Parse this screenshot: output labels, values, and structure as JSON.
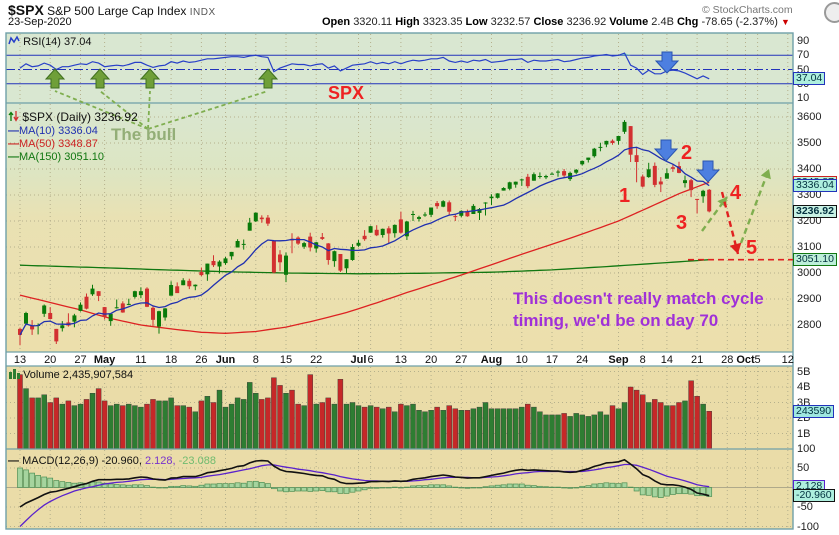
{
  "header": {
    "symbol": "$SPX",
    "name": "S&P 500 Large Cap Index",
    "exchange": "INDX",
    "date": "23-Sep-2020",
    "copyright": "© StockCharts.com",
    "quote": {
      "open_label": "Open",
      "open": "3320.11",
      "high_label": "High",
      "high": "3323.35",
      "low_label": "Low",
      "low": "3232.57",
      "close_label": "Close",
      "close": "3236.92",
      "volume_label": "Volume",
      "volume": "2.4B",
      "chg_label": "Chg",
      "chg": "-78.65 (-2.37%)",
      "chg_arrow": "▼"
    }
  },
  "panels": {
    "rsi": {
      "label": "RSI(14) 37.04",
      "value_box": "37.04",
      "scale": [
        90,
        70,
        50,
        30,
        10
      ]
    },
    "price": {
      "label": "$SPX (Daily) 3236.92",
      "ma10_label": "MA(10) 3336.04",
      "ma50_label": "MA(50) 3348.87",
      "ma150_label": "MA(150) 3051.10",
      "scale": [
        3600,
        3500,
        3400,
        3300,
        3200,
        3100,
        3000,
        2900,
        2800
      ],
      "boxes": {
        "ma10": "3336.04",
        "ma50": "3348.87",
        "close": "3236.92",
        "ma150": "3051.10"
      }
    },
    "volume": {
      "label": "Volume 2,435,907,584",
      "value_box": "243590",
      "scale": [
        [
          5000,
          "5B"
        ],
        [
          4000,
          "4B"
        ],
        [
          3000,
          "3B"
        ],
        [
          2000,
          "2B"
        ],
        [
          1000,
          "1B"
        ]
      ]
    },
    "macd": {
      "label_main": "MACD(12,26,9) -20.960,",
      "label_signal": "2.128,",
      "label_hist": "-23.088",
      "scale": [
        100,
        50,
        -50,
        -100
      ],
      "boxes": {
        "signal": "2.128",
        "macd": "-20.960"
      }
    }
  },
  "annotations": {
    "spx_label": "SPX",
    "the_bull": "The bull",
    "cycle_note_line1": "This doesn't really match cycle",
    "cycle_note_line2": "timing, we'd be on day 70",
    "numbers": [
      {
        "n": "1"
      },
      {
        "n": "2"
      },
      {
        "n": "3"
      },
      {
        "n": "4"
      },
      {
        "n": "5"
      }
    ]
  },
  "x_axis": {
    "ticks": [
      [
        0,
        "13"
      ],
      [
        5,
        "20"
      ],
      [
        10,
        "27"
      ],
      [
        14,
        "May"
      ],
      [
        20,
        "11"
      ],
      [
        25,
        "18"
      ],
      [
        30,
        "26"
      ],
      [
        34,
        "Jun"
      ],
      [
        39,
        "8"
      ],
      [
        44,
        "15"
      ],
      [
        49,
        "22"
      ],
      [
        56,
        "Jul"
      ],
      [
        58,
        "6"
      ],
      [
        63,
        "13"
      ],
      [
        68,
        "20"
      ],
      [
        73,
        "27"
      ],
      [
        78,
        "Aug"
      ],
      [
        83,
        "10"
      ],
      [
        88,
        "17"
      ],
      [
        93,
        "24"
      ],
      [
        99,
        "Sep"
      ],
      [
        103,
        "8"
      ],
      [
        107,
        "14"
      ],
      [
        112,
        "21"
      ],
      [
        117,
        "28"
      ],
      [
        120,
        "Oct"
      ],
      [
        122,
        "5"
      ],
      [
        127,
        "12"
      ]
    ]
  },
  "colors": {
    "candle_up": "#0A7A0A",
    "candle_down": "#D23030",
    "ma10": "#2030B0",
    "ma50": "#DD2222",
    "ma150": "#117711",
    "rsi_line": "#2840C8",
    "rsi_level": "#2233BB",
    "macd_line": "#111111",
    "macd_signal": "#5A22CC",
    "hist_fill": "#A5D49E",
    "hist_stroke": "#4E8F55",
    "vol_up": "#2E7D32",
    "vol_down": "#C62828",
    "blue_arrow": "#4D7FE0",
    "green_arrow": "#6F9F38",
    "annot_red": "#EE2222",
    "annot_purple": "#A030D8"
  },
  "chart_data": {
    "type": "candlestick",
    "title": "$SPX (Daily) 3236.92",
    "date_range": "13-Apr-2020 to 23-Sep-2020",
    "candles": [
      [
        2785,
        2790,
        2722,
        2762
      ],
      [
        2805,
        2851,
        2805,
        2846
      ],
      [
        2796,
        2819,
        2762,
        2783
      ],
      [
        2799,
        2806,
        2764,
        2800
      ],
      [
        2843,
        2879,
        2831,
        2875
      ],
      [
        2846,
        2869,
        2821,
        2823
      ],
      [
        2785,
        2785,
        2727,
        2737
      ],
      [
        2788,
        2815,
        2775,
        2799
      ],
      [
        2810,
        2845,
        2794,
        2798
      ],
      [
        2813,
        2843,
        2791,
        2837
      ],
      [
        2854,
        2887,
        2852,
        2878
      ],
      [
        2909,
        2921,
        2860,
        2863
      ],
      [
        2918,
        2955,
        2912,
        2940
      ],
      [
        2930,
        2930,
        2892,
        2912
      ],
      [
        2869,
        2869,
        2821,
        2831
      ],
      [
        2815,
        2844,
        2797,
        2843
      ],
      [
        2868,
        2898,
        2863,
        2868
      ],
      [
        2883,
        2891,
        2847,
        2848
      ],
      [
        2878,
        2901,
        2876,
        2881
      ],
      [
        2908,
        2932,
        2902,
        2930
      ],
      [
        2915,
        2945,
        2903,
        2930
      ],
      [
        2940,
        2945,
        2869,
        2870
      ],
      [
        2866,
        2874,
        2794,
        2820
      ],
      [
        2794,
        2855,
        2767,
        2853
      ],
      [
        2829,
        2865,
        2817,
        2864
      ],
      [
        2913,
        2968,
        2913,
        2954
      ],
      [
        2949,
        2964,
        2923,
        2923
      ],
      [
        2953,
        2980,
        2953,
        2972
      ],
      [
        2970,
        2978,
        2938,
        2949
      ],
      [
        2949,
        2956,
        2934,
        2955
      ],
      [
        3004,
        3021,
        2988,
        2992
      ],
      [
        2995,
        3036,
        2970,
        3036
      ],
      [
        3046,
        3068,
        3023,
        3030
      ],
      [
        3025,
        3049,
        2998,
        3044
      ],
      [
        3038,
        3062,
        3031,
        3056
      ],
      [
        3064,
        3081,
        3051,
        3081
      ],
      [
        3098,
        3130,
        3098,
        3123
      ],
      [
        3111,
        3129,
        3090,
        3112
      ],
      [
        3163,
        3212,
        3163,
        3194
      ],
      [
        3199,
        3233,
        3196,
        3232
      ],
      [
        3213,
        3222,
        3193,
        3207
      ],
      [
        3213,
        3223,
        3181,
        3190
      ],
      [
        3123,
        3123,
        2999,
        3002
      ],
      [
        3071,
        3088,
        3008,
        3041
      ],
      [
        2993,
        3079,
        2965,
        3067
      ],
      [
        3131,
        3153,
        3076,
        3125
      ],
      [
        3136,
        3141,
        3108,
        3113
      ],
      [
        3101,
        3120,
        3093,
        3115
      ],
      [
        3140,
        3155,
        3083,
        3098
      ],
      [
        3094,
        3120,
        3079,
        3118
      ],
      [
        3138,
        3154,
        3127,
        3131
      ],
      [
        3114,
        3115,
        3032,
        3050
      ],
      [
        3046,
        3086,
        3024,
        3084
      ],
      [
        3073,
        3073,
        3004,
        3009
      ],
      [
        3018,
        3053,
        2999,
        3053
      ],
      [
        3050,
        3111,
        3047,
        3100
      ],
      [
        3105,
        3128,
        3101,
        3116
      ],
      [
        3143,
        3165,
        3124,
        3130
      ],
      [
        3155,
        3182,
        3155,
        3180
      ],
      [
        3166,
        3184,
        3142,
        3145
      ],
      [
        3146,
        3171,
        3136,
        3170
      ],
      [
        3172,
        3180,
        3115,
        3152
      ],
      [
        3153,
        3187,
        3136,
        3185
      ],
      [
        3206,
        3236,
        3151,
        3155
      ],
      [
        3141,
        3200,
        3127,
        3198
      ],
      [
        3226,
        3239,
        3200,
        3227
      ],
      [
        3208,
        3220,
        3198,
        3215
      ],
      [
        3224,
        3234,
        3216,
        3225
      ],
      [
        3224,
        3252,
        3215,
        3252
      ],
      [
        3269,
        3277,
        3247,
        3257
      ],
      [
        3255,
        3280,
        3253,
        3276
      ],
      [
        3272,
        3279,
        3222,
        3236
      ],
      [
        3219,
        3228,
        3200,
        3216
      ],
      [
        3220,
        3241,
        3214,
        3239
      ],
      [
        3235,
        3244,
        3216,
        3218
      ],
      [
        3227,
        3265,
        3227,
        3258
      ],
      [
        3231,
        3250,
        3204,
        3246
      ],
      [
        3271,
        3272,
        3221,
        3271
      ],
      [
        3288,
        3303,
        3261,
        3294
      ],
      [
        3289,
        3307,
        3286,
        3306
      ],
      [
        3317,
        3330,
        3317,
        3327
      ],
      [
        3324,
        3351,
        3318,
        3349
      ],
      [
        3340,
        3352,
        3328,
        3351
      ],
      [
        3356,
        3363,
        3335,
        3360
      ],
      [
        3370,
        3381,
        3326,
        3334
      ],
      [
        3355,
        3387,
        3355,
        3380
      ],
      [
        3372,
        3387,
        3363,
        3373
      ],
      [
        3368,
        3378,
        3361,
        3373
      ],
      [
        3380,
        3387,
        3379,
        3382
      ],
      [
        3387,
        3395,
        3370,
        3390
      ],
      [
        3392,
        3400,
        3369,
        3375
      ],
      [
        3361,
        3390,
        3354,
        3385
      ],
      [
        3386,
        3400,
        3380,
        3397
      ],
      [
        3418,
        3432,
        3413,
        3431
      ],
      [
        3435,
        3444,
        3425,
        3444
      ],
      [
        3449,
        3481,
        3444,
        3478
      ],
      [
        3485,
        3501,
        3468,
        3485
      ],
      [
        3494,
        3509,
        3484,
        3508
      ],
      [
        3509,
        3514,
        3493,
        3500
      ],
      [
        3508,
        3528,
        3494,
        3527
      ],
      [
        3543,
        3588,
        3535,
        3581
      ],
      [
        3565,
        3565,
        3427,
        3455
      ],
      [
        3453,
        3480,
        3349,
        3427
      ],
      [
        3371,
        3379,
        3329,
        3332
      ],
      [
        3369,
        3424,
        3366,
        3399
      ],
      [
        3412,
        3425,
        3330,
        3339
      ],
      [
        3352,
        3369,
        3311,
        3341
      ],
      [
        3363,
        3402,
        3363,
        3384
      ],
      [
        3407,
        3419,
        3389,
        3401
      ],
      [
        3411,
        3428,
        3384,
        3385
      ],
      [
        3346,
        3375,
        3329,
        3357
      ],
      [
        3357,
        3362,
        3292,
        3319
      ],
      [
        3285,
        3285,
        3229,
        3281
      ],
      [
        3295,
        3320,
        3270,
        3316
      ],
      [
        3320,
        3323,
        3233,
        3237
      ]
    ],
    "volume_m": [
      4800,
      3900,
      3300,
      3300,
      3500,
      3000,
      3300,
      2900,
      3100,
      2800,
      2900,
      3200,
      3600,
      3900,
      3100,
      2800,
      2900,
      2800,
      2900,
      2800,
      2700,
      2900,
      3200,
      3100,
      3100,
      3300,
      2800,
      2800,
      2700,
      2400,
      3100,
      3400,
      3000,
      3800,
      2700,
      2900,
      3300,
      3200,
      4300,
      3600,
      3200,
      3300,
      4600,
      4100,
      3600,
      3800,
      2900,
      2800,
      4800,
      2900,
      3000,
      3300,
      2900,
      4500,
      2900,
      3000,
      2800,
      2700,
      2800,
      2700,
      2600,
      2700,
      2400,
      2900,
      2800,
      2900,
      2500,
      2400,
      2500,
      2700,
      2500,
      2800,
      2600,
      2500,
      2500,
      2600,
      2700,
      3000,
      2600,
      2600,
      2600,
      2600,
      2600,
      2700,
      2900,
      2700,
      2400,
      2200,
      2200,
      2200,
      2300,
      2100,
      2300,
      2200,
      2100,
      2200,
      2400,
      2200,
      2800,
      2600,
      3000,
      4000,
      3800,
      3500,
      3000,
      3200,
      3000,
      2800,
      2800,
      3000,
      3100,
      4400,
      3400,
      2900,
      2436
    ],
    "rsi": [
      52,
      58,
      54,
      55,
      59,
      56,
      50,
      54,
      54,
      56,
      58,
      57,
      61,
      59,
      54,
      55,
      56,
      55,
      57,
      60,
      60,
      56,
      53,
      55,
      56,
      61,
      59,
      62,
      60,
      61,
      63,
      65,
      65,
      66,
      67,
      68,
      68,
      67,
      69,
      70,
      68,
      67,
      47,
      52,
      55,
      58,
      57,
      57,
      55,
      57,
      58,
      52,
      55,
      48,
      52,
      56,
      57,
      58,
      61,
      58,
      60,
      58,
      61,
      58,
      61,
      63,
      62,
      63,
      65,
      65,
      67,
      62,
      60,
      62,
      60,
      63,
      62,
      64,
      60,
      61,
      62,
      64,
      64,
      65,
      60,
      63,
      62,
      62,
      63,
      64,
      61,
      62,
      64,
      66,
      67,
      69,
      70,
      71,
      69,
      70,
      73,
      56,
      52,
      43,
      49,
      44,
      44,
      48,
      49,
      48,
      45,
      41,
      37,
      41,
      37
    ],
    "macd": [
      -50,
      -40,
      -33,
      -26,
      -18,
      -12,
      -10,
      -6,
      -2,
      2,
      7,
      10,
      16,
      20,
      20,
      20,
      21,
      21,
      22,
      25,
      27,
      26,
      22,
      20,
      19,
      24,
      25,
      28,
      28,
      28,
      32,
      38,
      40,
      43,
      46,
      49,
      54,
      56,
      63,
      68,
      69,
      68,
      55,
      46,
      41,
      40,
      38,
      36,
      33,
      31,
      30,
      24,
      21,
      13,
      10,
      10,
      11,
      12,
      15,
      15,
      16,
      15,
      17,
      16,
      17,
      21,
      23,
      25,
      28,
      30,
      32,
      30,
      27,
      26,
      24,
      25,
      25,
      28,
      31,
      34,
      37,
      41,
      44,
      46,
      44,
      45,
      44,
      43,
      42,
      42,
      40,
      39,
      40,
      44,
      48,
      54,
      58,
      63,
      64,
      66,
      71,
      60,
      48,
      33,
      27,
      17,
      9,
      7,
      7,
      5,
      1,
      -5,
      -14,
      -17,
      -20.96
    ],
    "macd_signal": [
      -100,
      -85,
      -70,
      -57,
      -45,
      -36,
      -28,
      -21,
      -15,
      -9,
      -5,
      -1,
      2,
      6,
      9,
      11,
      13,
      14,
      16,
      18,
      20,
      21,
      21,
      21,
      20,
      21,
      22,
      23,
      24,
      25,
      26,
      29,
      31,
      33,
      36,
      39,
      42,
      45,
      48,
      52,
      56,
      58,
      58,
      55,
      52,
      50,
      47,
      45,
      43,
      40,
      38,
      35,
      32,
      28,
      25,
      22,
      20,
      18,
      17,
      17,
      16,
      16,
      16,
      16,
      16,
      17,
      18,
      20,
      21,
      23,
      25,
      26,
      26,
      26,
      26,
      25,
      25,
      26,
      27,
      28,
      30,
      32,
      35,
      37,
      38,
      40,
      41,
      41,
      41,
      41,
      41,
      41,
      41,
      41,
      43,
      45,
      48,
      51,
      53,
      56,
      59,
      59,
      57,
      52,
      47,
      41,
      35,
      29,
      25,
      21,
      17,
      12,
      7,
      4,
      2.128
    ],
    "ma50_points": [
      [
        0,
        2915
      ],
      [
        10,
        2858
      ],
      [
        15,
        2825
      ],
      [
        20,
        2800
      ],
      [
        25,
        2785
      ],
      [
        30,
        2772
      ],
      [
        34,
        2768
      ],
      [
        39,
        2775
      ],
      [
        44,
        2792
      ],
      [
        49,
        2818
      ],
      [
        54,
        2848
      ],
      [
        59,
        2885
      ],
      [
        64,
        2925
      ],
      [
        69,
        2962
      ],
      [
        74,
        3000
      ],
      [
        79,
        3040
      ],
      [
        84,
        3080
      ],
      [
        89,
        3118
      ],
      [
        94,
        3158
      ],
      [
        99,
        3200
      ],
      [
        104,
        3252
      ],
      [
        109,
        3305
      ],
      [
        114,
        3349
      ]
    ],
    "ma150_points": [
      [
        0,
        3030
      ],
      [
        14,
        3020
      ],
      [
        24,
        3012
      ],
      [
        34,
        3005
      ],
      [
        44,
        3000
      ],
      [
        56,
        2997
      ],
      [
        63,
        2998
      ],
      [
        78,
        3003
      ],
      [
        88,
        3012
      ],
      [
        98,
        3026
      ],
      [
        107,
        3040
      ],
      [
        114,
        3051
      ]
    ],
    "ylim_price": [
      2700,
      3646
    ],
    "ylim_rsi": [
      0,
      100
    ],
    "ylim_macd": [
      -100,
      100
    ],
    "grid": true
  }
}
